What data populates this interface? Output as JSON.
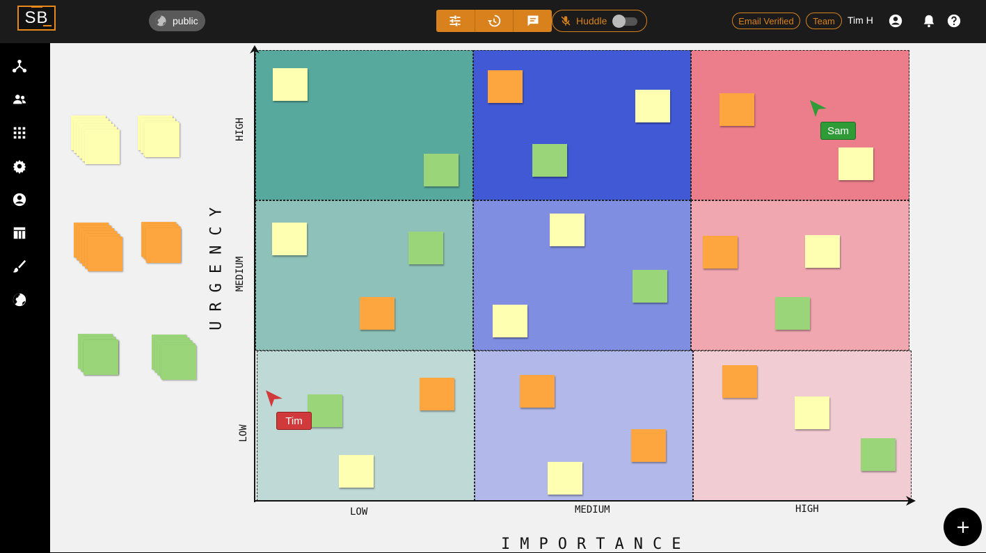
{
  "app": {
    "logo_text": "SB"
  },
  "header": {
    "visibility_label": "public",
    "huddle_label": "Huddle",
    "email_badge": "Email Verified",
    "team_badge": "Team",
    "user_name": "Tim H",
    "accent_color": "#d9821d"
  },
  "toolbar": {
    "icons": [
      "sliders-icon",
      "history-icon",
      "chat-icon"
    ]
  },
  "sidebar": {
    "icons": [
      "graph-icon",
      "users-icon",
      "apps-grid-icon",
      "settings-icon",
      "account-icon",
      "table-icon",
      "brush-icon",
      "globe-icon"
    ]
  },
  "board": {
    "x_axis_title": "IMPORTANCE",
    "y_axis_title": "URGENCY",
    "x_levels": [
      "LOW",
      "MEDIUM",
      "HIGH"
    ],
    "y_levels": [
      "HIGH",
      "MEDIUM",
      "LOW"
    ],
    "colors": {
      "teal": [
        "#57a99d",
        "#8ec1b9",
        "#bfd9d6"
      ],
      "blue": [
        "#4259d6",
        "#7f8ee0",
        "#b2b8e9"
      ],
      "red": [
        "#ec7e8c",
        "#f0a7b0",
        "#f2ccd3"
      ]
    },
    "note_colors": {
      "yellow": "#feffb0",
      "orange": "#fda53e",
      "green": "#9bd57a"
    }
  },
  "cursors": {
    "sam": {
      "label": "Sam",
      "color": "#2e9b36"
    },
    "tim": {
      "label": "Tim",
      "color": "#d03a3a"
    }
  }
}
